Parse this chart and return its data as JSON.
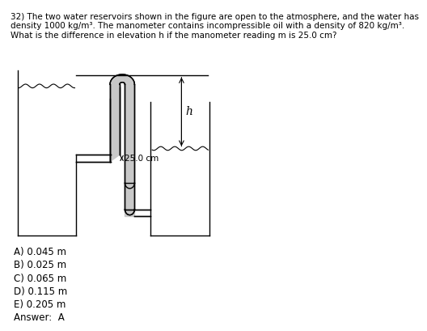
{
  "title_text": "32) The two water reservoirs shown in the figure are open to the atmosphere, and the water has\ndensity 1000 kg/m3. The manometer contains incompressible oil with a density of 820 kg/m3.\nWhat is the difference in elevation h if the manometer reading m is 25.0 cm?",
  "choices": [
    "A) 0.045 m",
    "B) 0.025 m",
    "C) 0.065 m",
    "D) 0.115 m",
    "E) 0.205 m"
  ],
  "answer": "Answer:  A",
  "manometer_label": "25.0 cm",
  "h_label": "h",
  "bg_color": "#ffffff",
  "line_color": "#000000",
  "tube_fill": "#c8c8c8",
  "font_size": 8.5
}
